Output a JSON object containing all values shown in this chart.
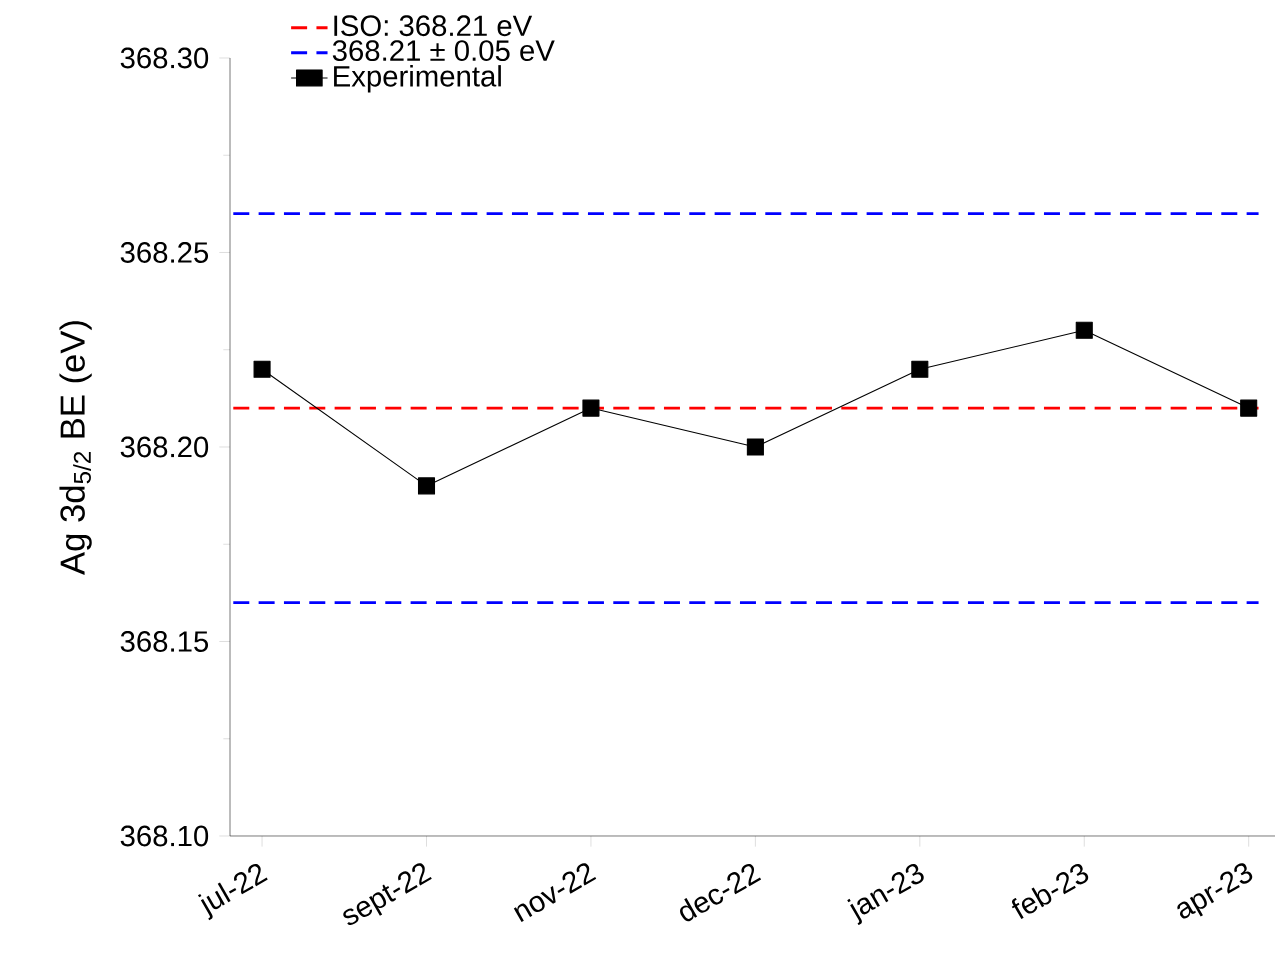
{
  "chart_data": {
    "type": "line",
    "ylabel": "Ag 3d$_{5/2}$ BE (eV)",
    "categories": [
      "jul-22",
      "sept-22",
      "nov-22",
      "dec-22",
      "jan-23",
      "feb-23",
      "apr-23"
    ],
    "series": [
      {
        "name": "Experimental",
        "color": "#000000",
        "values": [
          368.22,
          368.19,
          368.21,
          368.2,
          368.22,
          368.23,
          368.21
        ]
      }
    ],
    "marker": "square",
    "line_style": "solid",
    "ylim": [
      368.1,
      368.3
    ],
    "yticks": [
      {
        "value": 368.1,
        "label": "368.10"
      },
      {
        "value": 368.15,
        "label": "368.15"
      },
      {
        "value": 368.2,
        "label": "368.20"
      },
      {
        "value": 368.25,
        "label": "368.25"
      },
      {
        "value": 368.3,
        "label": "368.30"
      }
    ],
    "ref_lines": [
      {
        "axis": "y",
        "value": 368.21,
        "label": "ISO: 368.21 eV",
        "color": "#ff0000",
        "line_style": "dashed"
      },
      {
        "axis": "y",
        "value": 368.26,
        "label": "368.21  ±  0.05 eV",
        "color": "#0000ff",
        "line_style": "dashed"
      },
      {
        "axis": "y",
        "value": 368.16,
        "color": "#0000ff",
        "line_style": "dashed"
      }
    ],
    "grid": false,
    "legend": "top left"
  }
}
